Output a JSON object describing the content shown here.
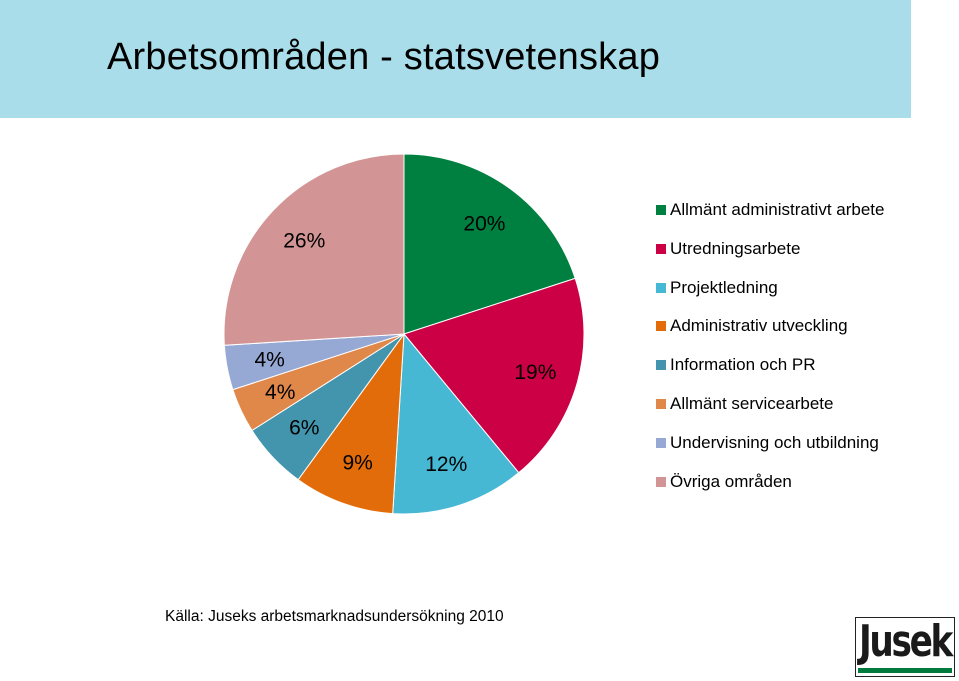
{
  "title": "Arbetsområden - statsvetenskap",
  "source": "Källa: Juseks arbetsmarknadsundersökning 2010",
  "logo_text": "Jusek",
  "colors": {
    "title_band": "#a8dde9",
    "logo_accent": "#007a3d"
  },
  "chart_data": {
    "type": "pie",
    "title": "",
    "legend_position": "right",
    "slices": [
      {
        "label": "Allmänt administrativt arbete",
        "value": 20,
        "value_label": "20%",
        "color": "#008040"
      },
      {
        "label": "Utredningsarbete",
        "value": 19,
        "value_label": "19%",
        "color": "#cc0044"
      },
      {
        "label": "Projektledning",
        "value": 12,
        "value_label": "12%",
        "color": "#47b8d4"
      },
      {
        "label": "Administrativ utveckling",
        "value": 9,
        "value_label": "9%",
        "color": "#e36c0a"
      },
      {
        "label": "Information och PR",
        "value": 6,
        "value_label": "6%",
        "color": "#4395ad"
      },
      {
        "label": "Allmänt servicearbete",
        "value": 4,
        "value_label": "4%",
        "color": "#e0874a"
      },
      {
        "label": "Undervisning och utbildning",
        "value": 4,
        "value_label": "4%",
        "color": "#96a9d4"
      },
      {
        "label": "Övriga områden",
        "value": 26,
        "value_label": "26%",
        "color": "#d29494"
      }
    ]
  }
}
